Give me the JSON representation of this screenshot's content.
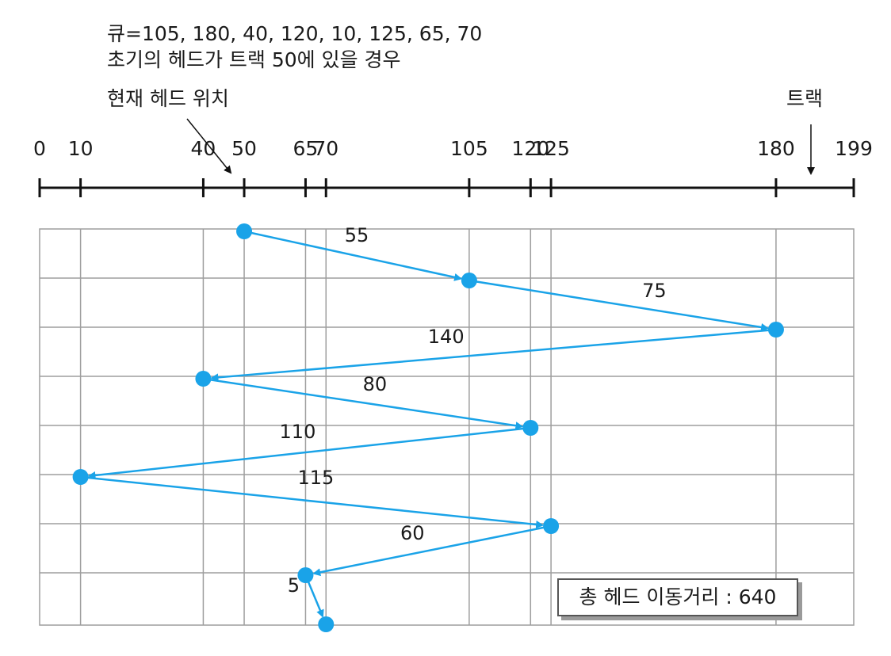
{
  "queue_line": "큐=105, 180, 40, 120, 10, 125, 65, 70",
  "initial_line": "초기의 헤드가 트랙 50에 있을 경우",
  "head_label": "현재 헤드 위치",
  "track_label": "트랙",
  "axis": {
    "min": 0,
    "max": 199,
    "tick_values": [
      0,
      10,
      40,
      50,
      65,
      70,
      105,
      120,
      125,
      180,
      199
    ],
    "tick_labels": [
      "0",
      "10",
      "40",
      "50",
      "65",
      "70",
      "105",
      "120",
      "125",
      "180",
      "199"
    ]
  },
  "seek_sequence": [
    50,
    105,
    180,
    40,
    120,
    10,
    125,
    65,
    70
  ],
  "move_distances": [
    "55",
    "75",
    "140",
    "80",
    "110",
    "115",
    "60",
    "5"
  ],
  "total_label": "총 헤드 이동거리 : 640",
  "colors": {
    "path": "#1aa3e8",
    "grid": "#9e9e9e",
    "axis": "#111111"
  }
}
